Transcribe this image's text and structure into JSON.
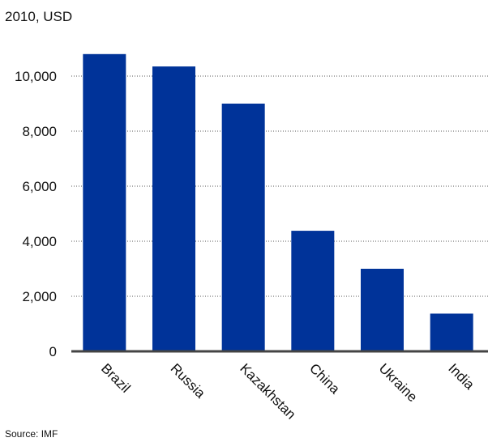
{
  "chart_data": {
    "type": "bar",
    "subtitle": "2010, USD",
    "categories": [
      "Brazil",
      "Russia",
      "Kazakhstan",
      "China",
      "Ukraine",
      "India"
    ],
    "values": [
      10800,
      10350,
      9000,
      4380,
      3000,
      1370
    ],
    "y_ticks": [
      "0",
      "2,000",
      "4,000",
      "6,000",
      "8,000",
      "10,000"
    ],
    "y_tick_values": [
      0,
      2000,
      4000,
      6000,
      8000,
      10000
    ],
    "ylim": [
      0,
      11000
    ],
    "grid": "horizontal dotted",
    "bar_color": "#003399",
    "axis_color": "#444444",
    "source": "Source: IMF"
  }
}
